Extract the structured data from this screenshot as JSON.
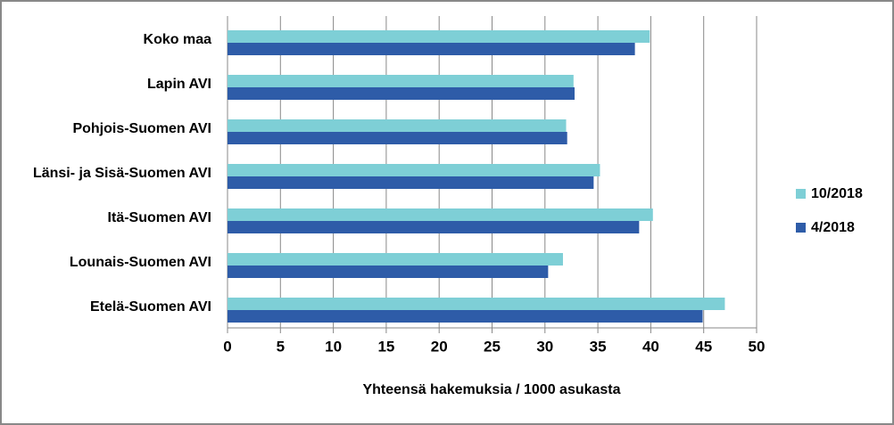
{
  "chart_data": {
    "type": "hbar",
    "categories": [
      "Koko maa",
      "Lapin AVI",
      "Pohjois-Suomen AVI",
      "Länsi- ja Sisä-Suomen AVI",
      "Itä-Suomen AVI",
      "Lounais-Suomen AVI",
      "Etelä-Suomen AVI"
    ],
    "series": [
      {
        "name": "10/2018",
        "color": "#7ecfd6",
        "values": [
          39.9,
          32.7,
          32.0,
          35.2,
          40.2,
          31.7,
          47.0
        ]
      },
      {
        "name": "4/2018",
        "color": "#2e5ca8",
        "values": [
          38.5,
          32.8,
          32.1,
          34.6,
          38.9,
          30.3,
          44.9
        ]
      }
    ],
    "xlabel": "Yhteensä hakemuksia / 1000 asukasta",
    "xlim": [
      0,
      50
    ],
    "xticks": [
      0,
      5,
      10,
      15,
      20,
      25,
      30,
      35,
      40,
      45,
      50
    ],
    "grid": true,
    "legend": "right"
  }
}
